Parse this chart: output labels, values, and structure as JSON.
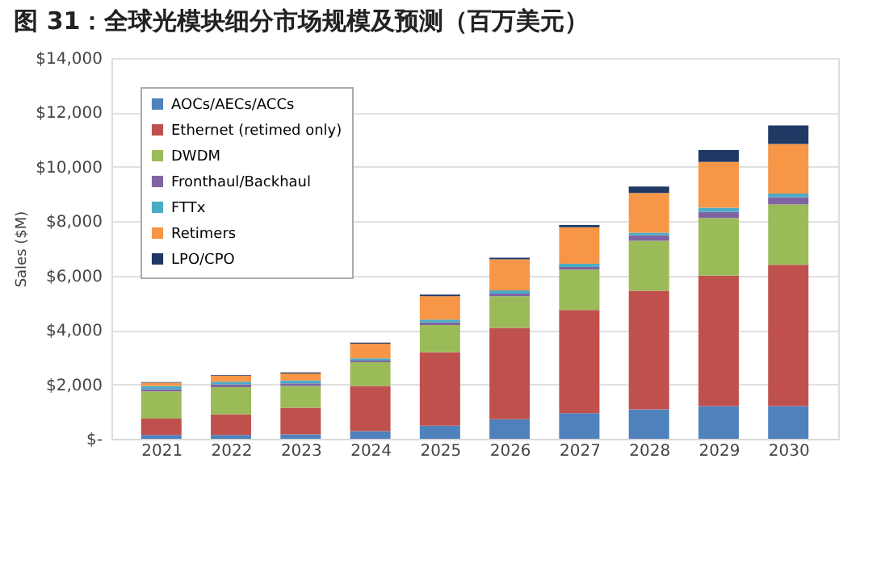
{
  "chart_data": {
    "type": "bar",
    "stacked": true,
    "title": "图 31：全球光模块细分市场规模及预测（百万美元）",
    "ylabel": "Sales ($M)",
    "categories": [
      "2021",
      "2022",
      "2023",
      "2024",
      "2025",
      "2026",
      "2027",
      "2028",
      "2029",
      "2030"
    ],
    "series": [
      {
        "name": "AOCs/AECs/ACCs",
        "color": "#4f81bd",
        "values": [
          140,
          140,
          160,
          280,
          480,
          720,
          940,
          1080,
          1200,
          1200
        ]
      },
      {
        "name": "Ethernet (retimed only)",
        "color": "#c0504d",
        "values": [
          600,
          760,
          980,
          1660,
          2700,
          3360,
          3800,
          4360,
          4800,
          5200
        ]
      },
      {
        "name": "DWDM",
        "color": "#9bbb59",
        "values": [
          1000,
          1000,
          800,
          880,
          1000,
          1160,
          1480,
          1840,
          2120,
          2220
        ]
      },
      {
        "name": "Fronthaul/Backhaul",
        "color": "#8064a2",
        "values": [
          80,
          100,
          100,
          60,
          100,
          100,
          100,
          200,
          220,
          260
        ]
      },
      {
        "name": "FTTx",
        "color": "#4bacc6",
        "values": [
          120,
          100,
          100,
          80,
          100,
          120,
          120,
          100,
          160,
          140
        ]
      },
      {
        "name": "Retimers",
        "color": "#f79646",
        "values": [
          120,
          220,
          260,
          540,
          860,
          1140,
          1340,
          1460,
          1680,
          1820
        ]
      },
      {
        "name": "LPO/CPO",
        "color": "#1f3864",
        "values": [
          20,
          20,
          40,
          40,
          60,
          60,
          80,
          240,
          440,
          680
        ]
      }
    ],
    "ylim": [
      0,
      14000
    ],
    "yticks": [
      {
        "value": 0,
        "label": "$-"
      },
      {
        "value": 2000,
        "label": "$2,000"
      },
      {
        "value": 4000,
        "label": "$4,000"
      },
      {
        "value": 6000,
        "label": "$6,000"
      },
      {
        "value": 8000,
        "label": "$8,000"
      },
      {
        "value": 10000,
        "label": "$10,000"
      },
      {
        "value": 12000,
        "label": "$12,000"
      },
      {
        "value": 14000,
        "label": "$14,000"
      }
    ],
    "grid": "y",
    "legend": "top left"
  }
}
